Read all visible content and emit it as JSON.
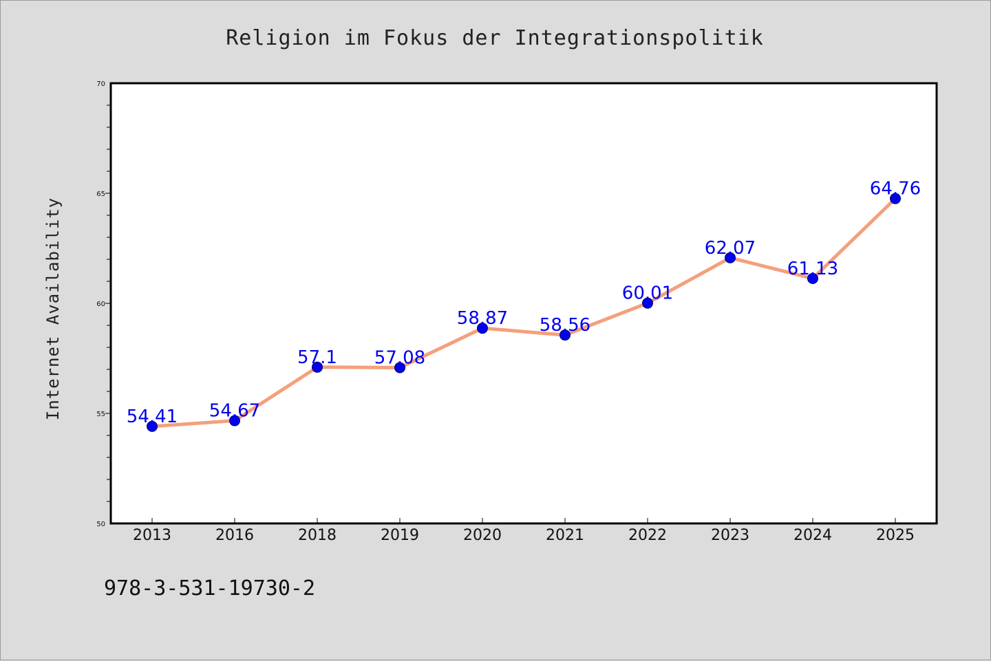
{
  "chart_data": {
    "type": "line",
    "title": "Religion im Fokus der Integrationspolitik",
    "xlabel": "",
    "ylabel": "Internet Availability",
    "categories": [
      "2013",
      "2016",
      "2018",
      "2019",
      "2020",
      "2021",
      "2022",
      "2023",
      "2024",
      "2025"
    ],
    "series": [
      {
        "values": [
          54.41,
          54.67,
          57.1,
          57.08,
          58.87,
          58.56,
          60.01,
          62.07,
          61.13,
          64.76
        ]
      }
    ],
    "data_labels": [
      "54.41",
      "54.67",
      "57.1",
      "57.08",
      "58.87",
      "58.56",
      "60.01",
      "62.07",
      "61.13",
      "64.76"
    ],
    "ylim": [
      50,
      70
    ],
    "y_ticks": [
      "50",
      "55",
      "60",
      "65",
      "70"
    ],
    "grid": false,
    "legend": "none",
    "colors": {
      "line": "#f4a07c",
      "marker": "#0000ee",
      "label": "#0000ee",
      "plot_background": "#ffffff",
      "page_background": "#dcdcdc"
    }
  },
  "footer": {
    "isbn": "978-3-531-19730-2"
  }
}
